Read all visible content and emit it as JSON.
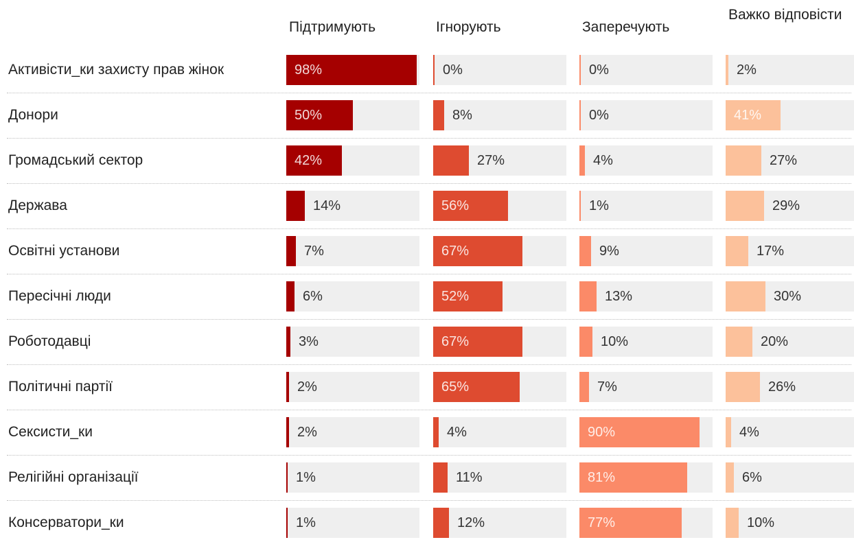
{
  "chart_data": {
    "type": "bar",
    "title": "",
    "columns": [
      {
        "key": "support",
        "label": "Підтримують",
        "color": "#a50000"
      },
      {
        "key": "ignore",
        "label": "Ігнорують",
        "color": "#de4b30"
      },
      {
        "key": "deny",
        "label": "Заперечують",
        "color": "#fb8a68"
      },
      {
        "key": "hard",
        "label": "Важко відповісти",
        "color": "#fcc19b"
      }
    ],
    "categories": [
      "Активісти_ки захисту прав жінок",
      "Донори",
      "Громадський сектор",
      "Держава",
      "Освітні установи",
      "Пересічні люди",
      "Роботодавці",
      "Політичні партії",
      "Сексисти_ки",
      "Релігійні організації",
      "Консерватори_ки"
    ],
    "series": [
      {
        "name": "Підтримують",
        "values": [
          98,
          50,
          42,
          14,
          7,
          6,
          3,
          2,
          2,
          1,
          1
        ]
      },
      {
        "name": "Ігнорують",
        "values": [
          0,
          8,
          27,
          56,
          67,
          52,
          67,
          65,
          4,
          11,
          12
        ]
      },
      {
        "name": "Заперечують",
        "values": [
          0,
          0,
          4,
          1,
          9,
          13,
          10,
          7,
          90,
          81,
          77
        ]
      },
      {
        "name": "Важко відповісти",
        "values": [
          2,
          41,
          27,
          29,
          17,
          30,
          20,
          26,
          4,
          6,
          10
        ]
      }
    ],
    "value_suffix": "%",
    "xlim": [
      0,
      100
    ]
  }
}
